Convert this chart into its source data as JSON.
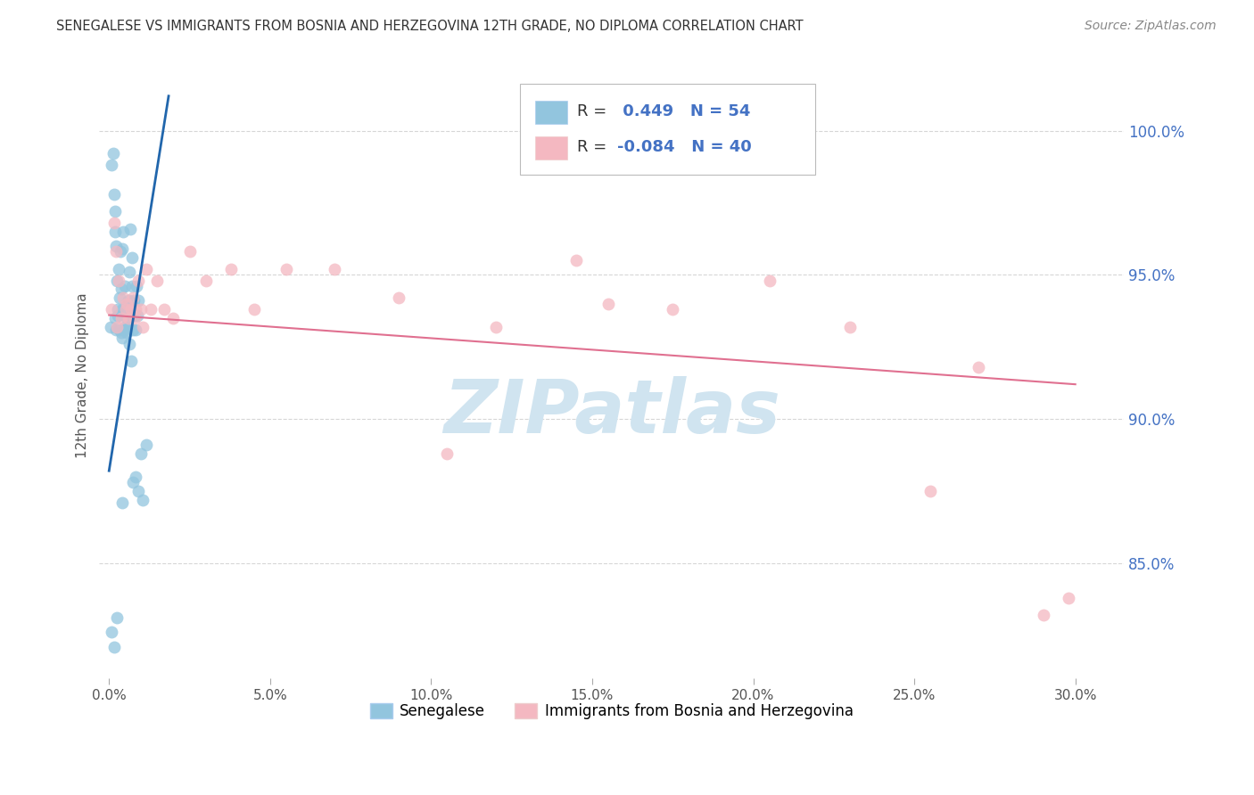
{
  "title": "SENEGALESE VS IMMIGRANTS FROM BOSNIA AND HERZEGOVINA 12TH GRADE, NO DIPLOMA CORRELATION CHART",
  "source": "Source: ZipAtlas.com",
  "ylabel": "12th Grade, No Diploma",
  "xlabel_ticks": [
    "0.0%",
    "5.0%",
    "10.0%",
    "15.0%",
    "20.0%",
    "25.0%",
    "30.0%"
  ],
  "xlabel_vals": [
    0.0,
    5.0,
    10.0,
    15.0,
    20.0,
    25.0,
    30.0
  ],
  "ylabel_right_ticks": [
    "100.0%",
    "95.0%",
    "90.0%",
    "85.0%"
  ],
  "ylabel_right_vals": [
    100.0,
    95.0,
    90.0,
    85.0
  ],
  "ymin": 81.0,
  "ymax": 102.0,
  "xmin": -0.3,
  "xmax": 31.5,
  "blue_R": "0.449",
  "blue_N": "54",
  "pink_R": "-0.084",
  "pink_N": "40",
  "blue_label": "Senegalese",
  "pink_label": "Immigrants from Bosnia and Herzegovina",
  "blue_color": "#92c5de",
  "pink_color": "#f4b8c1",
  "blue_line_color": "#2166ac",
  "pink_line_color": "#e07090",
  "title_color": "#333333",
  "source_color": "#888888",
  "tick_color_right": "#4472c4",
  "tick_color_x": "#555555",
  "watermark_text": "ZIPatlas",
  "watermark_color": "#d0e4f0",
  "grid_color": "#cccccc",
  "legend_R_label_color": "#333333",
  "legend_val_color": "#4472c4",
  "blue_x": [
    0.05,
    0.08,
    0.12,
    0.15,
    0.18,
    0.2,
    0.22,
    0.25,
    0.28,
    0.3,
    0.32,
    0.35,
    0.38,
    0.4,
    0.42,
    0.45,
    0.48,
    0.5,
    0.52,
    0.55,
    0.58,
    0.6,
    0.62,
    0.65,
    0.68,
    0.7,
    0.72,
    0.75,
    0.78,
    0.8,
    0.82,
    0.85,
    0.88,
    0.9,
    0.18,
    0.22,
    0.28,
    0.32,
    0.38,
    0.42,
    0.48,
    0.55,
    0.62,
    0.68,
    0.75,
    0.82,
    0.9,
    0.98,
    1.05,
    1.15,
    0.08,
    0.15,
    0.25,
    0.4
  ],
  "blue_y": [
    93.2,
    98.8,
    99.2,
    97.8,
    96.5,
    97.2,
    96.0,
    94.8,
    93.8,
    95.2,
    94.2,
    95.8,
    94.5,
    95.9,
    93.8,
    96.5,
    93.2,
    94.6,
    93.9,
    93.5,
    93.2,
    94.1,
    95.1,
    96.6,
    93.6,
    94.6,
    95.6,
    93.1,
    94.1,
    93.6,
    93.1,
    94.6,
    93.6,
    94.1,
    93.5,
    93.1,
    93.6,
    93.1,
    93.0,
    92.8,
    93.1,
    93.0,
    92.6,
    92.0,
    87.8,
    88.0,
    87.5,
    88.8,
    87.2,
    89.1,
    82.6,
    82.1,
    83.1,
    87.1
  ],
  "pink_x": [
    0.08,
    0.15,
    0.22,
    0.3,
    0.38,
    0.45,
    0.52,
    0.6,
    0.68,
    0.75,
    0.82,
    0.9,
    0.98,
    1.05,
    1.15,
    1.3,
    1.5,
    1.7,
    2.0,
    2.5,
    3.0,
    3.8,
    4.5,
    5.5,
    7.0,
    9.0,
    10.5,
    12.0,
    14.5,
    15.5,
    17.5,
    20.5,
    23.0,
    25.5,
    27.0,
    29.0,
    29.8,
    0.25,
    0.55,
    0.8
  ],
  "pink_y": [
    93.8,
    96.8,
    95.8,
    94.8,
    93.5,
    94.2,
    93.8,
    93.5,
    93.8,
    94.2,
    93.8,
    94.8,
    93.8,
    93.2,
    95.2,
    93.8,
    94.8,
    93.8,
    93.5,
    95.8,
    94.8,
    95.2,
    93.8,
    95.2,
    95.2,
    94.2,
    88.8,
    93.2,
    95.5,
    94.0,
    93.8,
    94.8,
    93.2,
    87.5,
    91.8,
    83.2,
    83.8,
    93.2,
    94.0,
    93.5
  ],
  "blue_line_x0": 0.0,
  "blue_line_y0": 88.2,
  "blue_line_x1": 1.85,
  "blue_line_y1": 101.2,
  "pink_line_x0": 0.0,
  "pink_line_y0": 93.6,
  "pink_line_x1": 30.0,
  "pink_line_y1": 91.2
}
